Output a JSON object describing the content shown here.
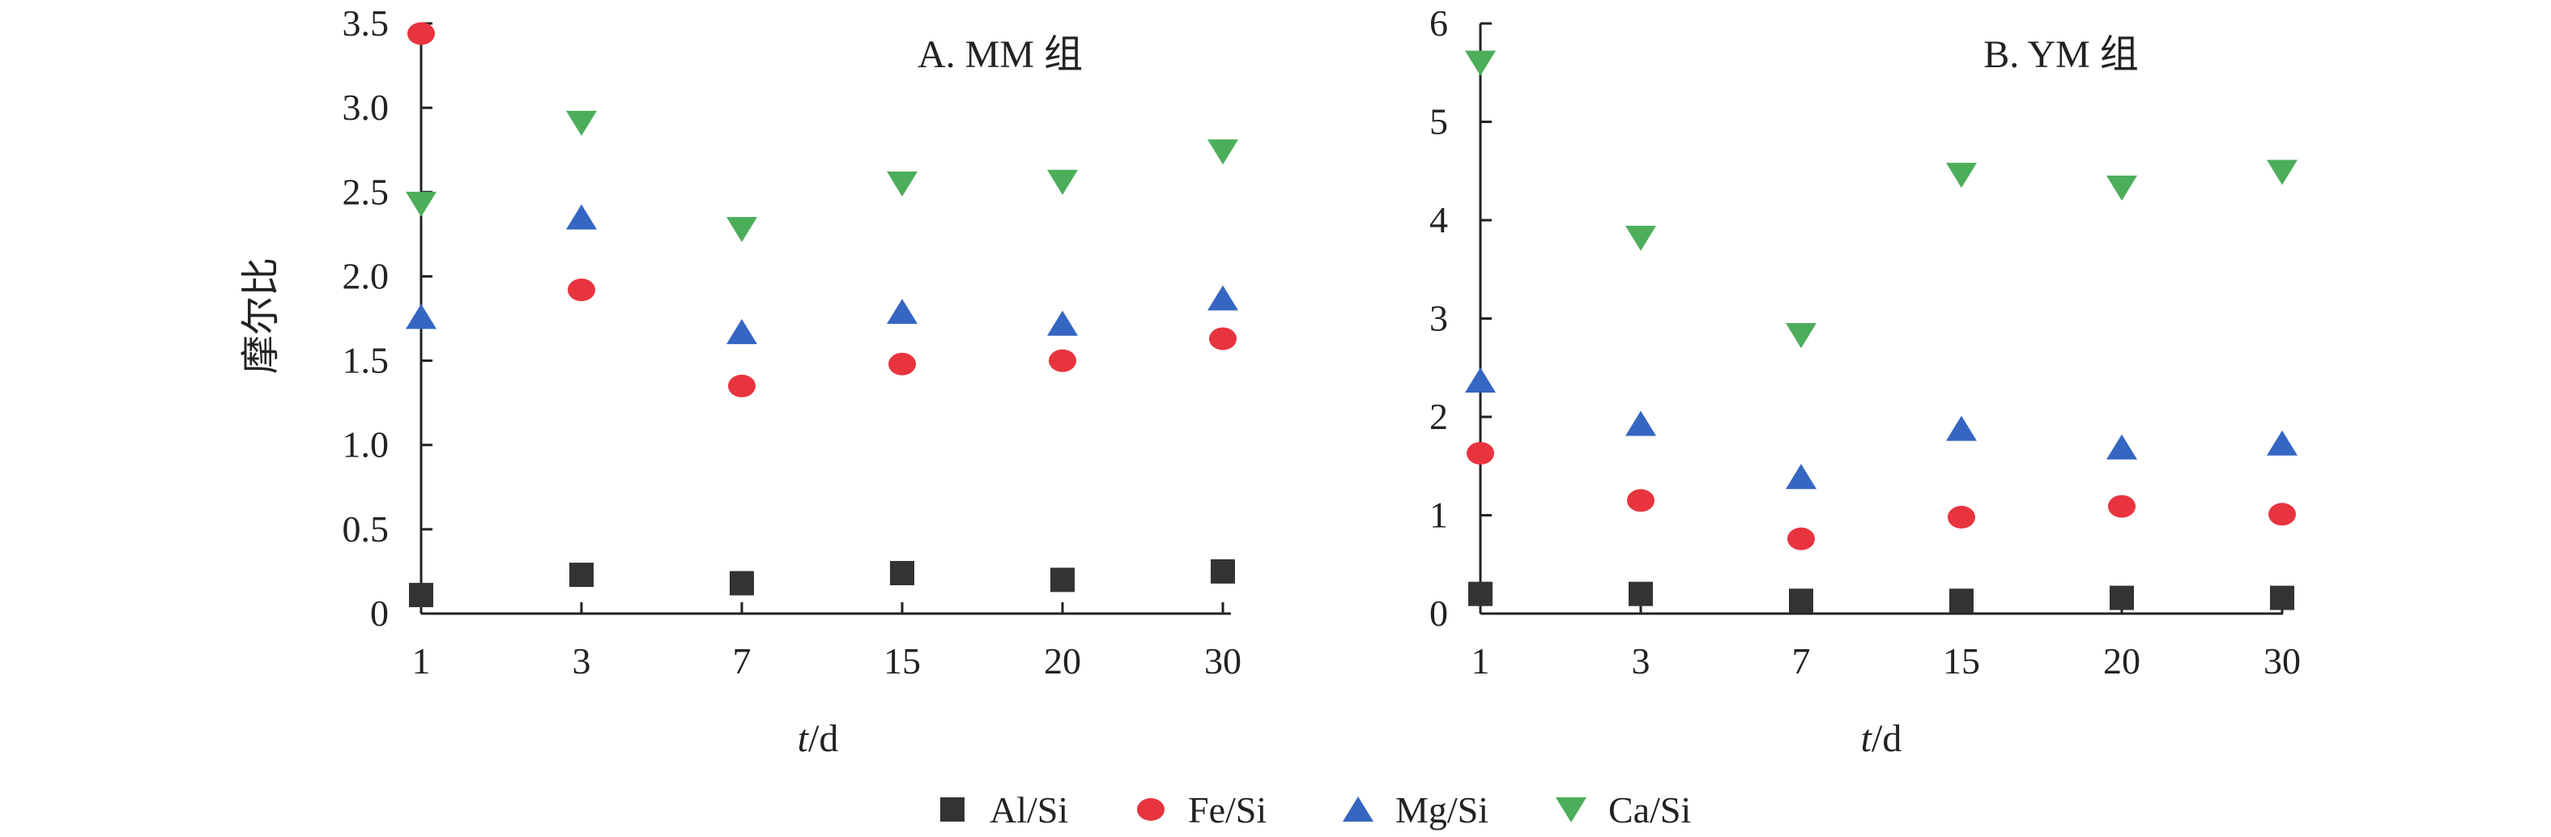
{
  "colors": {
    "Al/Si": "#333333",
    "Fe/Si": "#e8343e",
    "Mg/Si": "#3566c2",
    "Ca/Si": "#4cae5a",
    "axis": "#222222"
  },
  "legend": {
    "entries": [
      {
        "label": "Al/Si",
        "marker": "square"
      },
      {
        "label": "Fe/Si",
        "marker": "circle"
      },
      {
        "label": "Mg/Si",
        "marker": "triangle-up"
      },
      {
        "label": "Ca/Si",
        "marker": "triangle-down"
      }
    ]
  },
  "chart_data": [
    {
      "type": "scatter",
      "title": "A. MM 组",
      "xlabel": "t/d",
      "ylabel": "摩尔比",
      "categories": [
        "1",
        "3",
        "7",
        "15",
        "20",
        "30"
      ],
      "ylim": [
        0,
        3.5
      ],
      "yticks": [
        "0",
        "0.5",
        "1.0",
        "1.5",
        "2.0",
        "2.5",
        "3.0",
        "3.5"
      ],
      "ytick_values": [
        0,
        0.5,
        1.0,
        1.5,
        2.0,
        2.5,
        3.0,
        3.5
      ],
      "series": [
        {
          "name": "Al/Si",
          "marker": "square",
          "values": [
            0.11,
            0.23,
            0.18,
            0.24,
            0.2,
            0.25
          ]
        },
        {
          "name": "Fe/Si",
          "marker": "circle",
          "values": [
            3.44,
            1.92,
            1.35,
            1.48,
            1.5,
            1.63
          ]
        },
        {
          "name": "Mg/Si",
          "marker": "triangle-up",
          "values": [
            1.76,
            2.35,
            1.67,
            1.79,
            1.72,
            1.87
          ]
        },
        {
          "name": "Ca/Si",
          "marker": "triangle-down",
          "values": [
            2.43,
            2.91,
            2.28,
            2.55,
            2.56,
            2.74
          ]
        }
      ]
    },
    {
      "type": "scatter",
      "title": "B. YM 组",
      "xlabel": "t/d",
      "ylabel": "",
      "categories": [
        "1",
        "3",
        "7",
        "15",
        "20",
        "30"
      ],
      "ylim": [
        0,
        6
      ],
      "yticks": [
        "0",
        "1",
        "2",
        "3",
        "4",
        "5",
        "6"
      ],
      "ytick_values": [
        0,
        1,
        2,
        3,
        4,
        5,
        6
      ],
      "series": [
        {
          "name": "Al/Si",
          "marker": "square",
          "values": [
            0.2,
            0.2,
            0.13,
            0.13,
            0.16,
            0.16
          ]
        },
        {
          "name": "Fe/Si",
          "marker": "circle",
          "values": [
            1.63,
            1.15,
            0.76,
            0.98,
            1.09,
            1.01
          ]
        },
        {
          "name": "Mg/Si",
          "marker": "triangle-up",
          "values": [
            2.37,
            1.93,
            1.39,
            1.88,
            1.69,
            1.73
          ]
        },
        {
          "name": "Ca/Si",
          "marker": "triangle-down",
          "values": [
            5.6,
            3.82,
            2.83,
            4.46,
            4.33,
            4.49
          ]
        }
      ]
    }
  ]
}
